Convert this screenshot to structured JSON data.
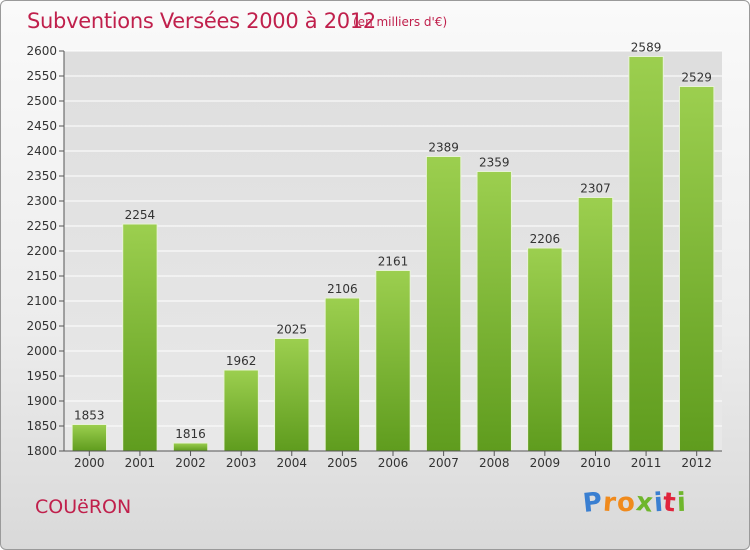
{
  "header": {
    "title": "Subventions Versées 2000 à 2012",
    "unit_note": "(en milliers d'€)"
  },
  "footer": {
    "commune": "COUëRON",
    "logo_text": "Proxiti",
    "logo_letters": [
      {
        "ch": "P",
        "color": "#3a7fd1"
      },
      {
        "ch": "r",
        "color": "#f08a1c"
      },
      {
        "ch": "o",
        "color": "#f08a1c"
      },
      {
        "ch": "x",
        "color": "#6fb62c"
      },
      {
        "ch": "i",
        "color": "#3a7fd1"
      },
      {
        "ch": "t",
        "color": "#e0243c"
      },
      {
        "ch": "i",
        "color": "#6fb62c"
      }
    ]
  },
  "chart_data": {
    "type": "bar",
    "title": "Subventions Versées 2000 à 2012",
    "subtitle": "(en milliers d'€)",
    "categories": [
      "2000",
      "2001",
      "2002",
      "2003",
      "2004",
      "2005",
      "2006",
      "2007",
      "2008",
      "2009",
      "2010",
      "2011",
      "2012"
    ],
    "values": [
      1853,
      2254,
      1816,
      1962,
      2025,
      2106,
      2161,
      2389,
      2359,
      2206,
      2307,
      2589,
      2529
    ],
    "ylim": [
      1800,
      2600
    ],
    "yticks": [
      1800,
      1850,
      1900,
      1950,
      2000,
      2050,
      2100,
      2150,
      2200,
      2250,
      2300,
      2350,
      2400,
      2450,
      2500,
      2550,
      2600
    ],
    "grid": true,
    "xlabel": "",
    "ylabel": "",
    "colors": {
      "bar_top": "#9ccf4f",
      "bar_bottom": "#5f9c1e",
      "grid": "#ffffff"
    }
  }
}
